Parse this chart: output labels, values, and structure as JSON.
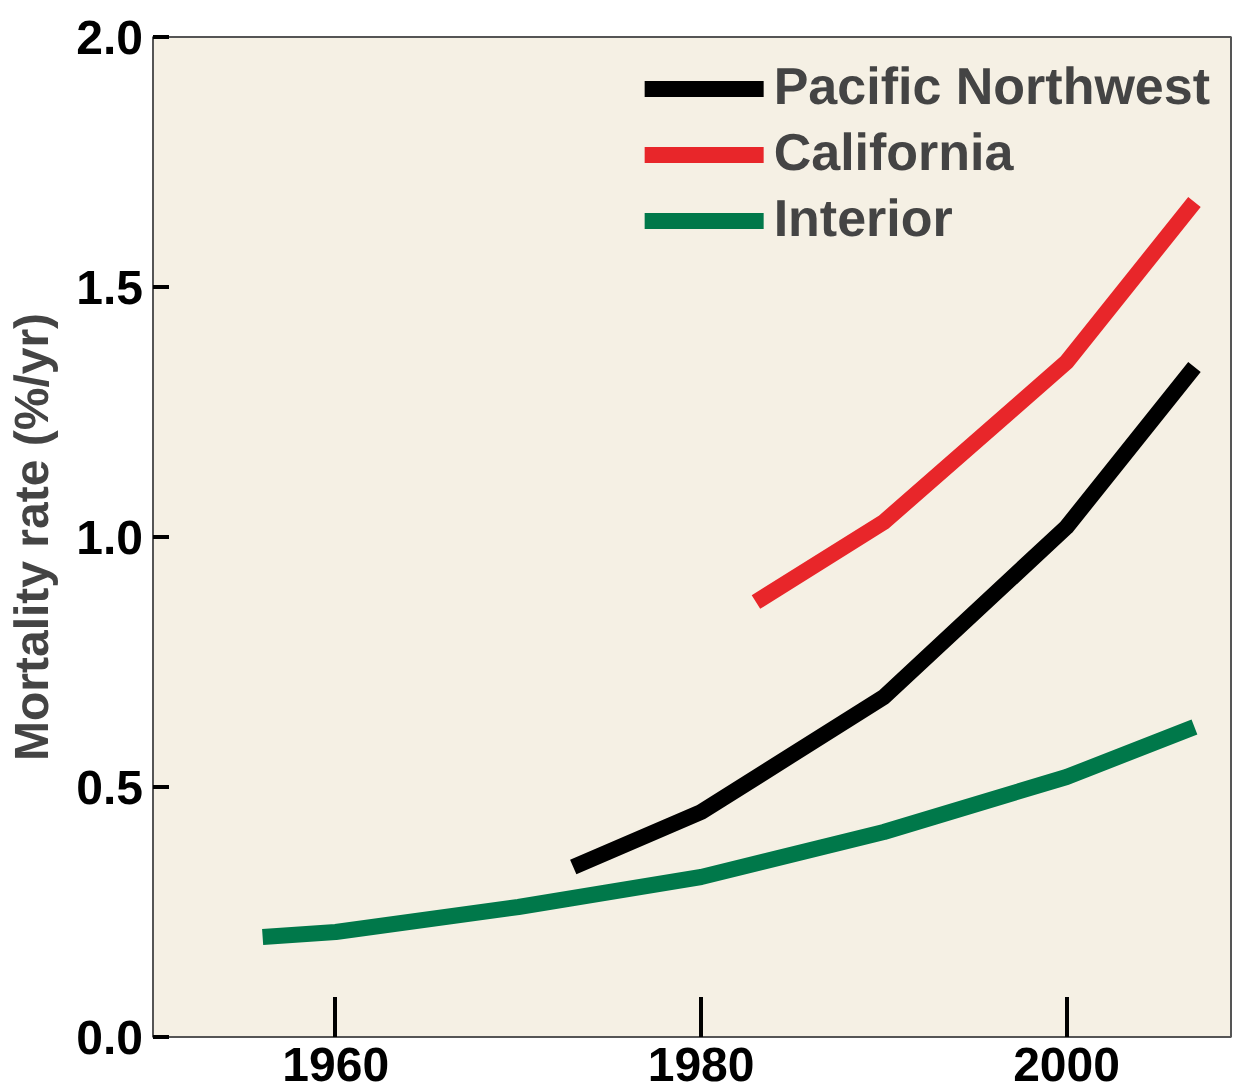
{
  "chart_data": {
    "type": "line",
    "ylabel": "Mortality rate (%/yr)",
    "xlim": [
      1950,
      2009
    ],
    "ylim": [
      0,
      2.0
    ],
    "xticks": [
      1960,
      1980,
      2000
    ],
    "yticks": [
      {
        "value": 0,
        "label": "0.0"
      },
      {
        "value": 0.5,
        "label": "0.5"
      },
      {
        "value": 1,
        "label": "1.0"
      },
      {
        "value": 1.5,
        "label": "1.5"
      },
      {
        "value": 2,
        "label": "2.0"
      }
    ],
    "grid": false,
    "legend": "top right",
    "marker": "none",
    "line_style": "solid",
    "series": [
      {
        "name": "Pacific Northwest",
        "color": "#000000",
        "x": [
          1973,
          1980,
          1990,
          2000,
          2007
        ],
        "values": [
          0.34,
          0.45,
          0.68,
          1.02,
          1.34
        ]
      },
      {
        "name": "California",
        "color": "#e8262a",
        "x": [
          1983,
          1990,
          2000,
          2007
        ],
        "values": [
          0.87,
          1.03,
          1.35,
          1.67
        ]
      },
      {
        "name": "Interior",
        "color": "#00784a",
        "x": [
          1956,
          1960,
          1970,
          1980,
          1990,
          2000,
          2007
        ],
        "values": [
          0.2,
          0.21,
          0.26,
          0.32,
          0.41,
          0.52,
          0.62
        ]
      }
    ]
  }
}
